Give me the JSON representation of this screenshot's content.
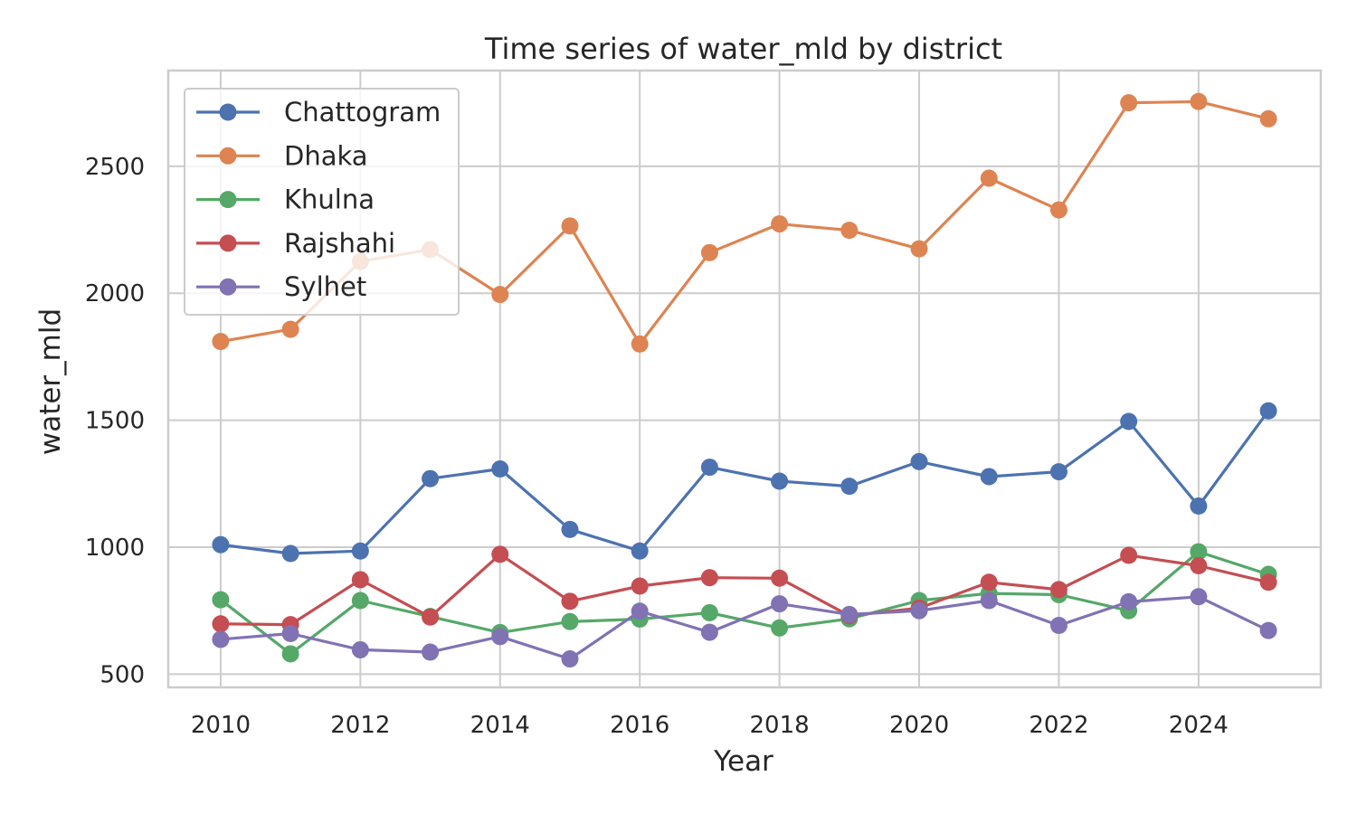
{
  "chart_data": {
    "type": "line",
    "title": "Time series of water_mld by district",
    "xlabel": "Year",
    "ylabel": "water_mld",
    "x": [
      2010,
      2011,
      2012,
      2013,
      2014,
      2015,
      2016,
      2017,
      2018,
      2019,
      2020,
      2021,
      2022,
      2023,
      2024,
      2025
    ],
    "xlim": [
      2009.25,
      2025.75
    ],
    "ylim": [
      448,
      2877
    ],
    "x_ticks": [
      2010,
      2012,
      2014,
      2016,
      2018,
      2020,
      2022,
      2024
    ],
    "y_ticks": [
      500,
      1000,
      1500,
      2000,
      2500
    ],
    "x_tick_labels": [
      "2010",
      "2012",
      "2014",
      "2016",
      "2018",
      "2020",
      "2022",
      "2024"
    ],
    "y_tick_labels": [
      "500",
      "1000",
      "1500",
      "2000",
      "2500"
    ],
    "grid": true,
    "legend_position": "top-left",
    "series": [
      {
        "name": "Chattogram",
        "color": "#4c72b0",
        "values": [
          1010,
          975,
          985,
          1270,
          1308,
          1070,
          985,
          1315,
          1260,
          1240,
          1337,
          1278,
          1297,
          1495,
          1162,
          1537
        ]
      },
      {
        "name": "Dhaka",
        "color": "#dd8452",
        "values": [
          1810,
          1858,
          2125,
          2172,
          1995,
          2265,
          1800,
          2160,
          2273,
          2248,
          2175,
          2453,
          2328,
          2750,
          2755,
          2687
        ]
      },
      {
        "name": "Khulna",
        "color": "#55a868",
        "values": [
          793,
          580,
          790,
          727,
          664,
          707,
          717,
          742,
          682,
          718,
          790,
          818,
          813,
          750,
          982,
          893
        ]
      },
      {
        "name": "Rajshahi",
        "color": "#c44e52",
        "values": [
          698,
          695,
          872,
          725,
          972,
          787,
          847,
          880,
          878,
          730,
          760,
          862,
          833,
          968,
          927,
          862
        ]
      },
      {
        "name": "Sylhet",
        "color": "#8172b3",
        "values": [
          637,
          660,
          596,
          587,
          648,
          560,
          748,
          665,
          777,
          735,
          750,
          790,
          692,
          785,
          805,
          672
        ]
      }
    ]
  }
}
